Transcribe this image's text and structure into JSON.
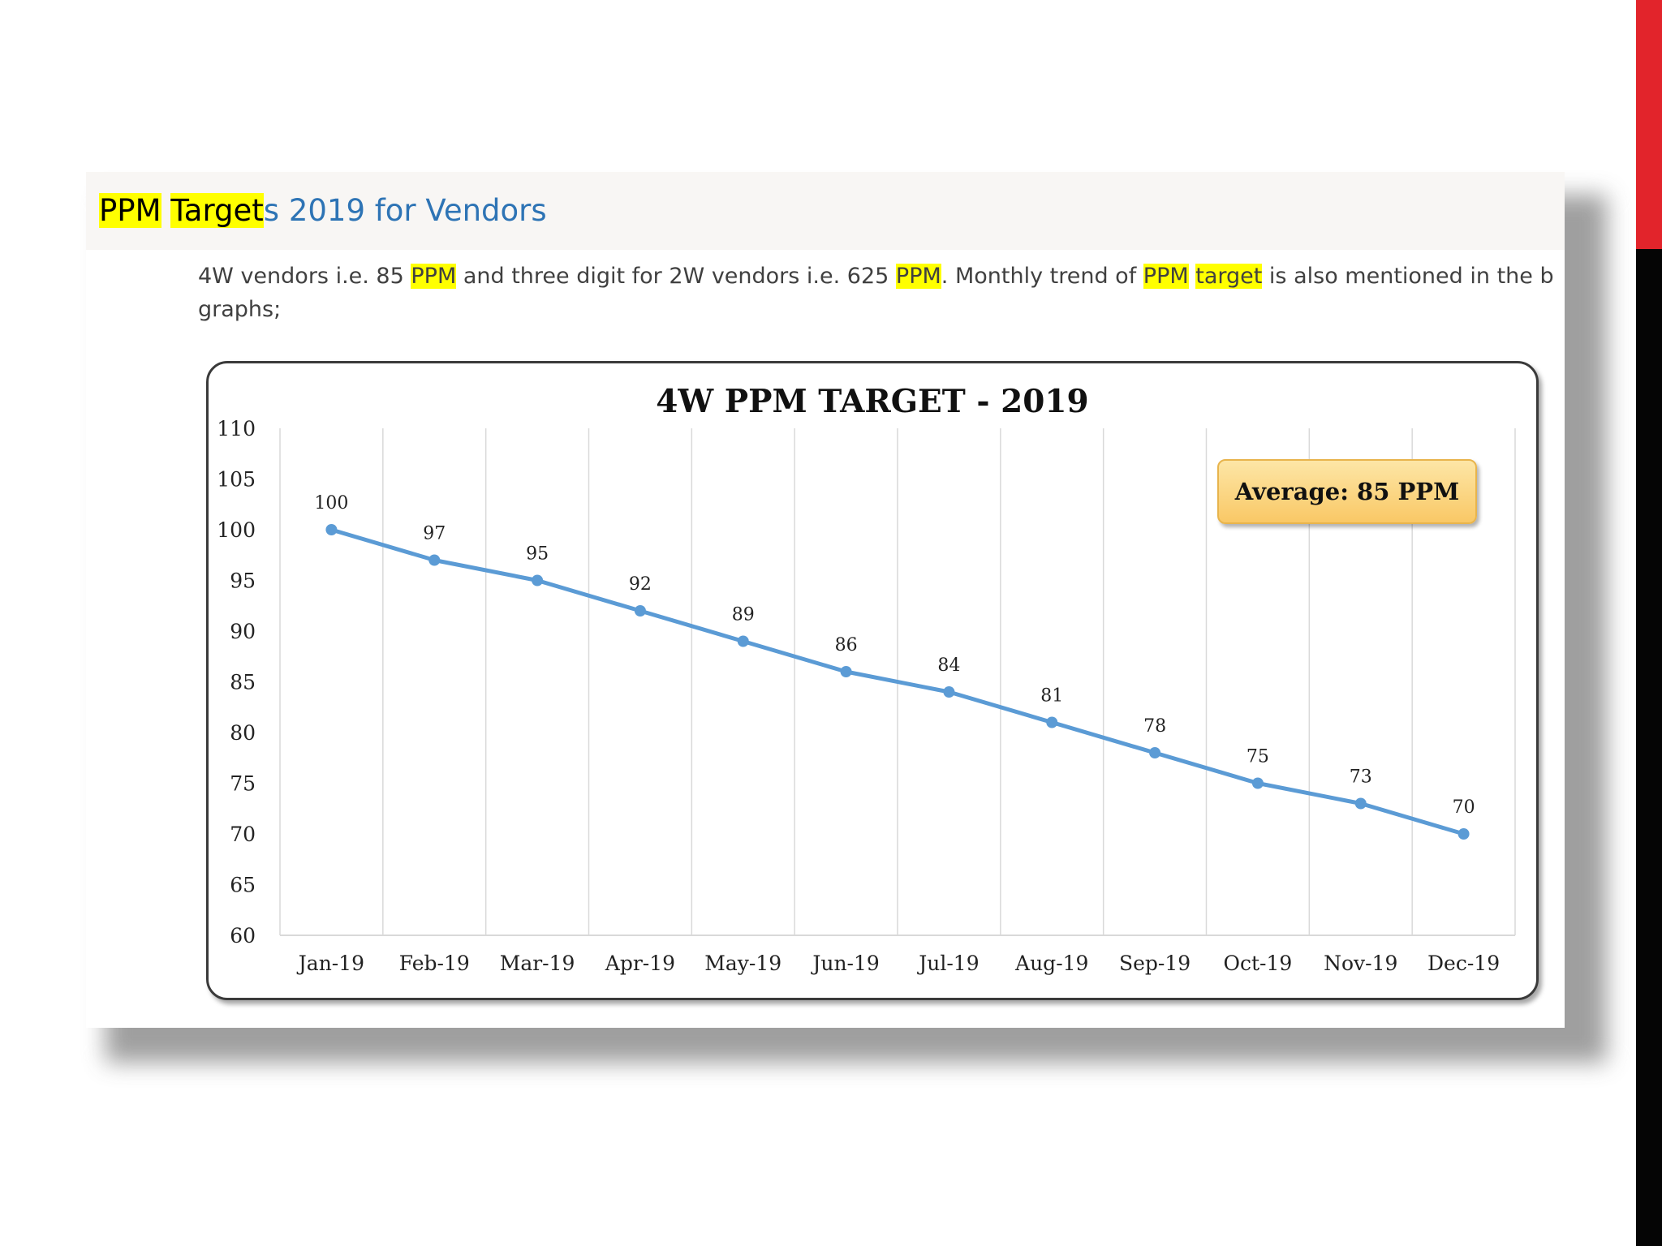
{
  "document": {
    "heading": {
      "part1": "PPM",
      "space": " ",
      "part2": "Target",
      "part3": "s 2019 for Vendors"
    },
    "body_line1": [
      {
        "text": "4W vendors i.e. 85 ",
        "highlight": false
      },
      {
        "text": "PPM",
        "highlight": true
      },
      {
        "text": " and three digit for 2W vendors i.e. 625 ",
        "highlight": false
      },
      {
        "text": "PPM",
        "highlight": true
      },
      {
        "text": ". Monthly trend of ",
        "highlight": false
      },
      {
        "text": "PPM",
        "highlight": true
      },
      {
        "text": " ",
        "highlight": false
      },
      {
        "text": "target",
        "highlight": true
      },
      {
        "text": " is also mentioned in the b",
        "highlight": false
      }
    ],
    "body_line2": "graphs;"
  },
  "chart_data": {
    "type": "line",
    "title": "4W PPM TARGET - 2019",
    "categories": [
      "Jan-19",
      "Feb-19",
      "Mar-19",
      "Apr-19",
      "May-19",
      "Jun-19",
      "Jul-19",
      "Aug-19",
      "Sep-19",
      "Oct-19",
      "Nov-19",
      "Dec-19"
    ],
    "series": [
      {
        "values": [
          100,
          97,
          95,
          92,
          89,
          86,
          84,
          81,
          78,
          75,
          73,
          70
        ],
        "color": "#5b9bd5"
      }
    ],
    "data_labels": [
      "100",
      "97",
      "95",
      "92",
      "89",
      "86",
      "84",
      "81",
      "78",
      "75",
      "73",
      "70"
    ],
    "ylim": [
      60,
      110
    ],
    "ytick_step": 5,
    "grid": "vertical",
    "annotation": "Average: 85 PPM",
    "xlabel": "",
    "ylabel": ""
  }
}
